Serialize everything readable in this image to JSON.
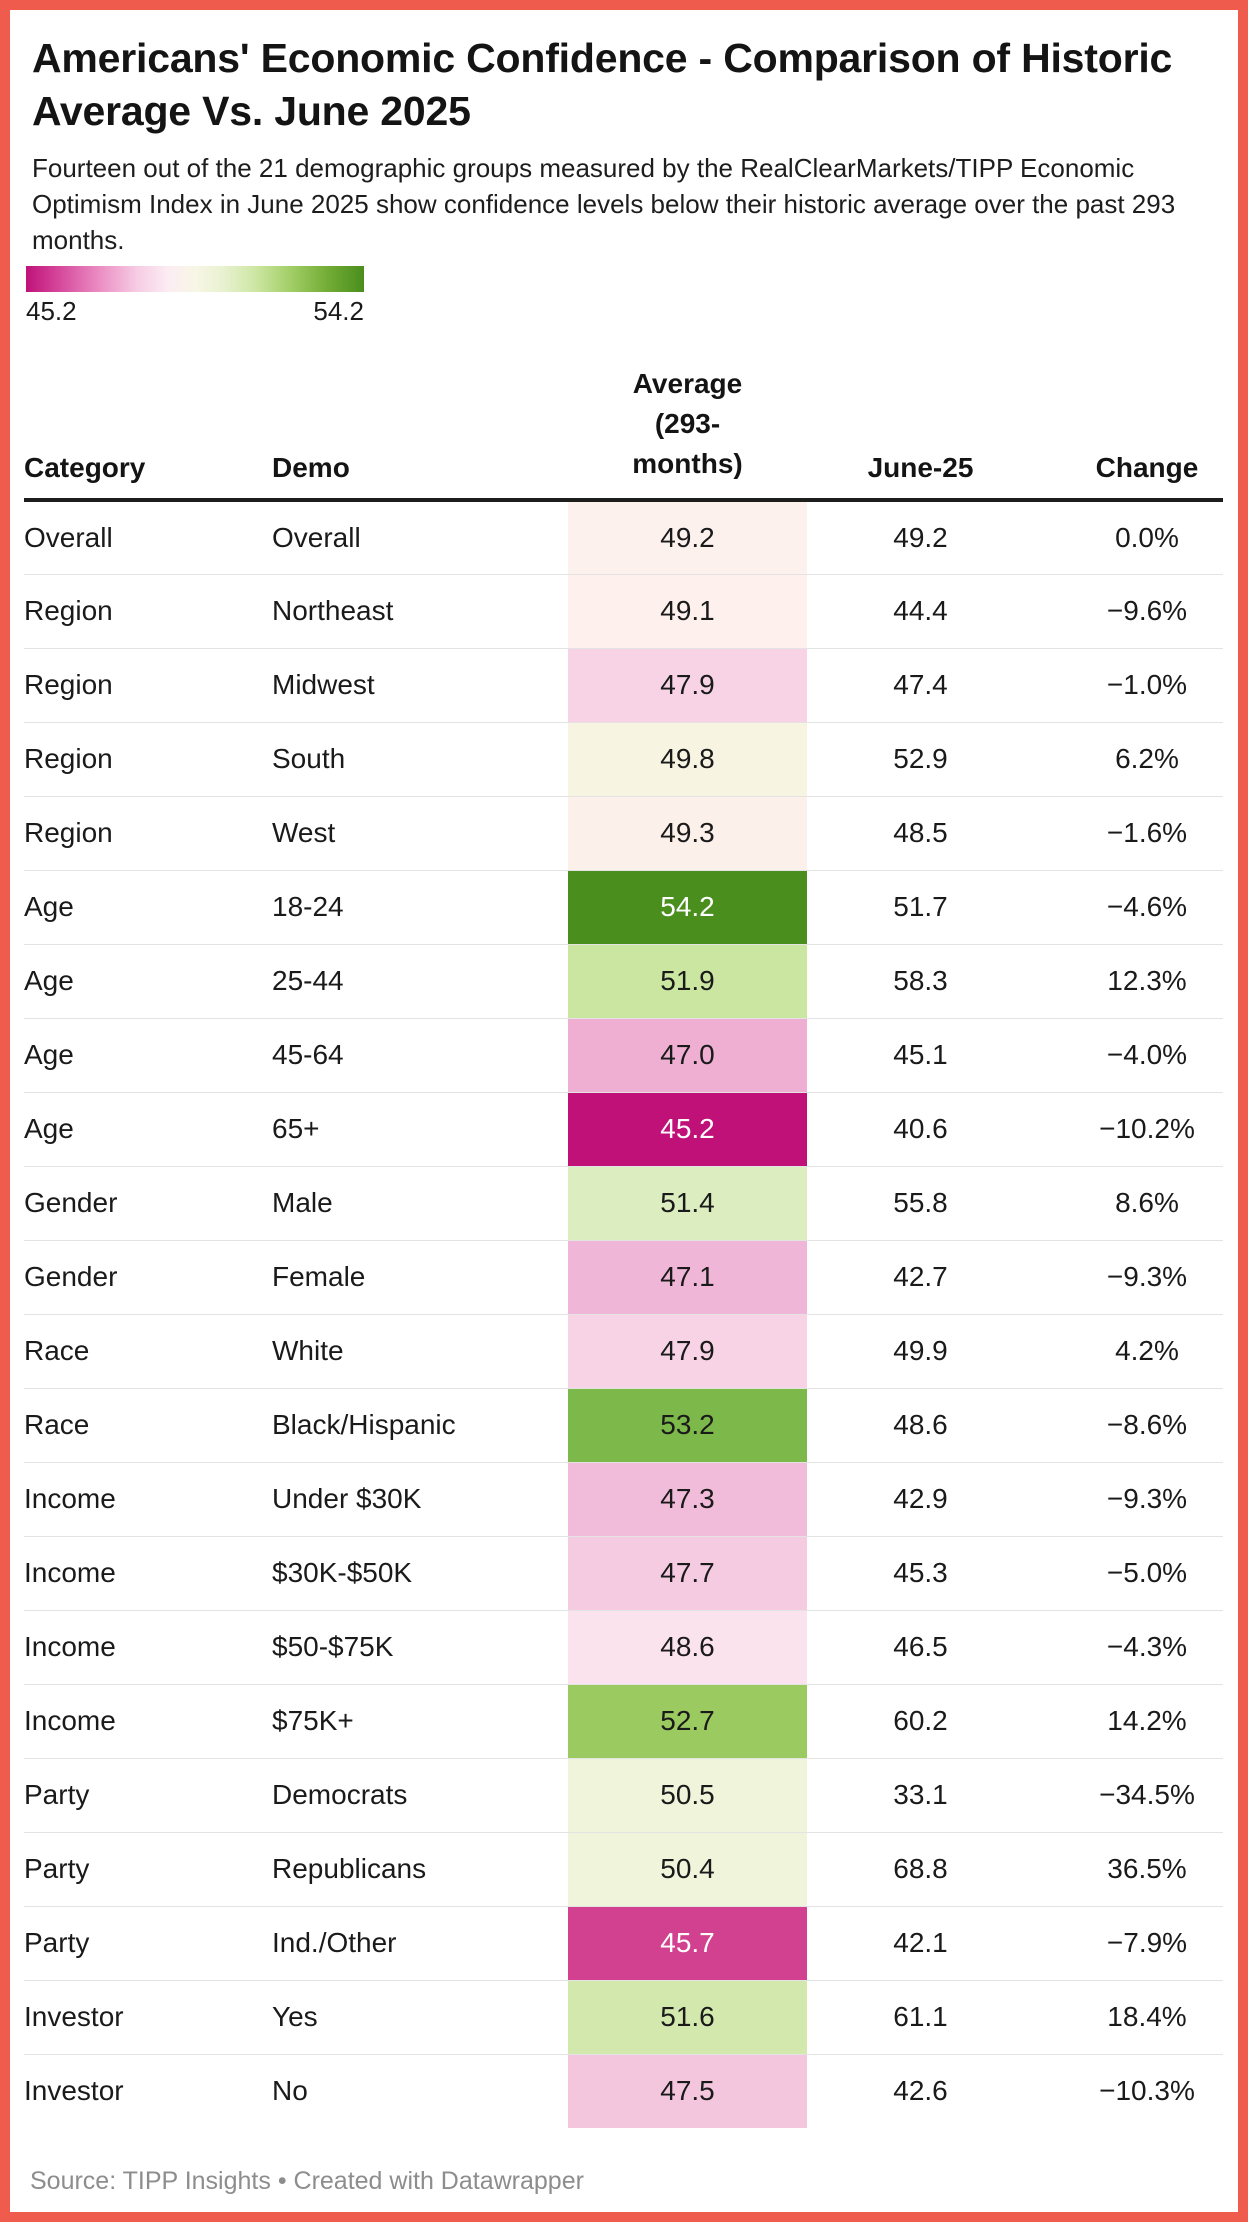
{
  "accent_border_color": "#ef5b4d",
  "legend": {
    "min_label": "45.2",
    "max_label": "54.2",
    "gradient_stops": [
      "#c01179 0%",
      "#d6499c 10%",
      "#eb8fc4 22%",
      "#f6cde4 33%",
      "#fcecf3 42%",
      "#f8f6e6 50%",
      "#e9f2d2 58%",
      "#cde6a3 68%",
      "#a3cf68 78%",
      "#73ad36 89%",
      "#4a8e1e 100%"
    ]
  },
  "chart_data": {
    "type": "table",
    "title": "Americans' Economic Confidence - Comparison of Historic Average Vs. June 2025",
    "subtitle": "Fourteen out of the 21 demographic groups measured by the RealClearMarkets/TIPP Economic Optimism Index in June 2025 show confidence levels below their historic average over the past 293 months.",
    "source": "Source: TIPP Insights • Created with Datawrapper",
    "columns": [
      "Category",
      "Demo",
      "Average (293-months)",
      "June-25",
      "Change"
    ],
    "color_scale": {
      "min": 45.2,
      "max": 54.2,
      "min_color": "#c01179",
      "mid_color": "#f8f6e6",
      "max_color": "#4a8e1e",
      "heatmap_column": "Average (293-months)"
    },
    "rows": [
      {
        "category": "Overall",
        "demo": "Overall",
        "average": "49.2",
        "june": "49.2",
        "change": "0.0%",
        "cell_color": "#fdf1ee",
        "cell_text_color": "#1a1a1a"
      },
      {
        "category": "Region",
        "demo": "Northeast",
        "average": "49.1",
        "june": "44.4",
        "change": "−9.6%",
        "cell_color": "#fdf0ed",
        "cell_text_color": "#1a1a1a"
      },
      {
        "category": "Region",
        "demo": "Midwest",
        "average": "47.9",
        "june": "47.4",
        "change": "−1.0%",
        "cell_color": "#f8d3e5",
        "cell_text_color": "#1a1a1a"
      },
      {
        "category": "Region",
        "demo": "South",
        "average": "49.8",
        "june": "52.9",
        "change": "6.2%",
        "cell_color": "#f7f4e1",
        "cell_text_color": "#1a1a1a"
      },
      {
        "category": "Region",
        "demo": "West",
        "average": "49.3",
        "june": "48.5",
        "change": "−1.6%",
        "cell_color": "#fcf0ea",
        "cell_text_color": "#1a1a1a"
      },
      {
        "category": "Age",
        "demo": "18-24",
        "average": "54.2",
        "june": "51.7",
        "change": "−4.6%",
        "cell_color": "#4a8e1e",
        "cell_text_color": "#ffffff"
      },
      {
        "category": "Age",
        "demo": "25-44",
        "average": "51.9",
        "june": "58.3",
        "change": "12.3%",
        "cell_color": "#cbe6a1",
        "cell_text_color": "#1a1a1a"
      },
      {
        "category": "Age",
        "demo": "45-64",
        "average": "47.0",
        "june": "45.1",
        "change": "−4.0%",
        "cell_color": "#eeafd2",
        "cell_text_color": "#1a1a1a"
      },
      {
        "category": "Age",
        "demo": "65+",
        "average": "45.2",
        "june": "40.6",
        "change": "−10.2%",
        "cell_color": "#c01179",
        "cell_text_color": "#ffffff"
      },
      {
        "category": "Gender",
        "demo": "Male",
        "average": "51.4",
        "june": "55.8",
        "change": "8.6%",
        "cell_color": "#dcedc0",
        "cell_text_color": "#1a1a1a"
      },
      {
        "category": "Gender",
        "demo": "Female",
        "average": "47.1",
        "june": "42.7",
        "change": "−9.3%",
        "cell_color": "#f0b6d7",
        "cell_text_color": "#1a1a1a"
      },
      {
        "category": "Race",
        "demo": "White",
        "average": "47.9",
        "june": "49.9",
        "change": "4.2%",
        "cell_color": "#f8d3e5",
        "cell_text_color": "#1a1a1a"
      },
      {
        "category": "Race",
        "demo": "Black/Hispanic",
        "average": "53.2",
        "june": "48.6",
        "change": "−8.6%",
        "cell_color": "#7cb84a",
        "cell_text_color": "#1a1a1a"
      },
      {
        "category": "Income",
        "demo": "Under $30K",
        "average": "47.3",
        "june": "42.9",
        "change": "−9.3%",
        "cell_color": "#f1bcda",
        "cell_text_color": "#1a1a1a"
      },
      {
        "category": "Income",
        "demo": "$30K-$50K",
        "average": "47.7",
        "june": "45.3",
        "change": "−5.0%",
        "cell_color": "#f5cbe1",
        "cell_text_color": "#1a1a1a"
      },
      {
        "category": "Income",
        "demo": "$50-$75K",
        "average": "48.6",
        "june": "46.5",
        "change": "−4.3%",
        "cell_color": "#fbe3ee",
        "cell_text_color": "#1a1a1a"
      },
      {
        "category": "Income",
        "demo": "$75K+",
        "average": "52.7",
        "june": "60.2",
        "change": "14.2%",
        "cell_color": "#9bca61",
        "cell_text_color": "#1a1a1a"
      },
      {
        "category": "Party",
        "demo": "Democrats",
        "average": "50.5",
        "june": "33.1",
        "change": "−34.5%",
        "cell_color": "#eff4da",
        "cell_text_color": "#1a1a1a"
      },
      {
        "category": "Party",
        "demo": "Republicans",
        "average": "50.4",
        "june": "68.8",
        "change": "36.5%",
        "cell_color": "#f0f4db",
        "cell_text_color": "#1a1a1a"
      },
      {
        "category": "Party",
        "demo": "Ind./Other",
        "average": "45.7",
        "june": "42.1",
        "change": "−7.9%",
        "cell_color": "#d2418f",
        "cell_text_color": "#ffffff"
      },
      {
        "category": "Investor",
        "demo": "Yes",
        "average": "51.6",
        "june": "61.1",
        "change": "18.4%",
        "cell_color": "#d2e8ad",
        "cell_text_color": "#1a1a1a"
      },
      {
        "category": "Investor",
        "demo": "No",
        "average": "47.5",
        "june": "42.6",
        "change": "−10.3%",
        "cell_color": "#f3c6de",
        "cell_text_color": "#1a1a1a"
      }
    ]
  }
}
